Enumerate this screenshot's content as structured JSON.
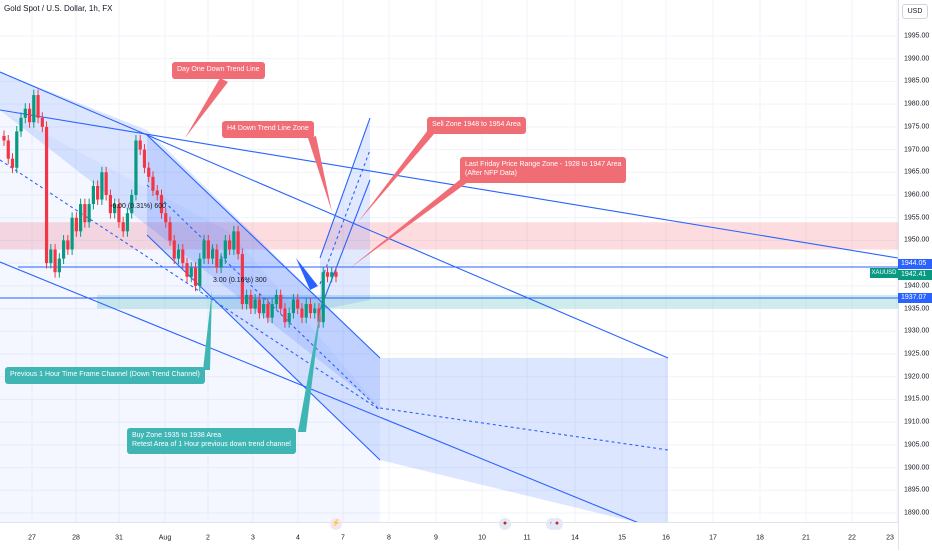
{
  "header": {
    "title": "Gold Spot / U.S. Dollar, 1h, FX",
    "currency": "USD"
  },
  "price_axis": {
    "ticks": [
      "1995.00",
      "1990.00",
      "1985.00",
      "1980.00",
      "1975.00",
      "1970.00",
      "1965.00",
      "1960.00",
      "1955.00",
      "1950.00",
      "1945.00",
      "1940.00",
      "1935.00",
      "1930.00",
      "1925.00",
      "1920.00",
      "1915.00",
      "1910.00",
      "1905.00",
      "1900.00",
      "1895.00",
      "1890.00"
    ],
    "badges": {
      "upper_line": "1944.05",
      "current": "1942.41",
      "lower_line": "1937.07",
      "symbol": "XAUUSD"
    }
  },
  "time_axis": {
    "ticks": [
      "27",
      "28",
      "31",
      "Aug",
      "2",
      "3",
      "4",
      "7",
      "8",
      "9",
      "10",
      "11",
      "14",
      "15",
      "16",
      "17",
      "18",
      "21",
      "22",
      "23"
    ]
  },
  "annotations": {
    "day_one": "Day One Down Trend Line",
    "h4": "H4 Down Trend Line Zone",
    "sell_zone": "Sell Zone 1948 to 1954 Area",
    "last_friday_line1": "Last Friday Price Range Zone - 1928 to 1947 Area",
    "last_friday_line2": "(After NFP Data)",
    "previous_channel": "Previous 1 Hour Time Frame Channel (Down Trend Channel)",
    "buy_zone_line1": "Buy Zone 1935 to 1938 Area",
    "buy_zone_line2": "Retest Area of 1 Hour previous down trend channel",
    "measure_1": "-6.00 (0.31%) 600",
    "measure_2": "3.00 (0.16%) 300"
  },
  "colors": {
    "up": "#089981",
    "down": "#f23645",
    "channel_fill": "#2962ff",
    "channel_line": "#2962ff",
    "sell_zone": "#f7525f",
    "buy_zone": "#3fb5b4",
    "note_red": "#f16d76",
    "note_teal": "#3fb5b4",
    "event_icon": "thunder-icon"
  },
  "chart_data": {
    "type": "candlestick",
    "title": "Gold Spot / U.S. Dollar, 1h, FX",
    "ylim": [
      1888,
      1999
    ],
    "sell_zone": [
      1948,
      1954
    ],
    "buy_zone": [
      1935,
      1938
    ],
    "horizontal_lines": [
      1944.05,
      1937.07
    ],
    "last_price": 1942.41,
    "series": [
      {
        "name": "XAUUSD",
        "closes": [
          1972,
          1968,
          1966,
          1974,
          1977,
          1979,
          1976,
          1982,
          1977,
          1975,
          1945,
          1948,
          1943,
          1946,
          1950,
          1948,
          1955,
          1952,
          1958,
          1954,
          1958,
          1962,
          1959,
          1965,
          1960,
          1956,
          1958,
          1954,
          1952,
          1956,
          1960,
          1972,
          1970,
          1966,
          1964,
          1961,
          1960,
          1956,
          1954,
          1950,
          1946,
          1948,
          1945,
          1942,
          1944,
          1940,
          1946,
          1950,
          1946,
          1948,
          1944,
          1946,
          1950,
          1948,
          1952,
          1947,
          1936,
          1938,
          1935,
          1937,
          1934,
          1936,
          1933,
          1936,
          1938,
          1935,
          1932,
          1934,
          1937,
          1935,
          1933,
          1936,
          1934,
          1935,
          1932,
          1943,
          1942,
          1943,
          1942
        ]
      }
    ]
  }
}
